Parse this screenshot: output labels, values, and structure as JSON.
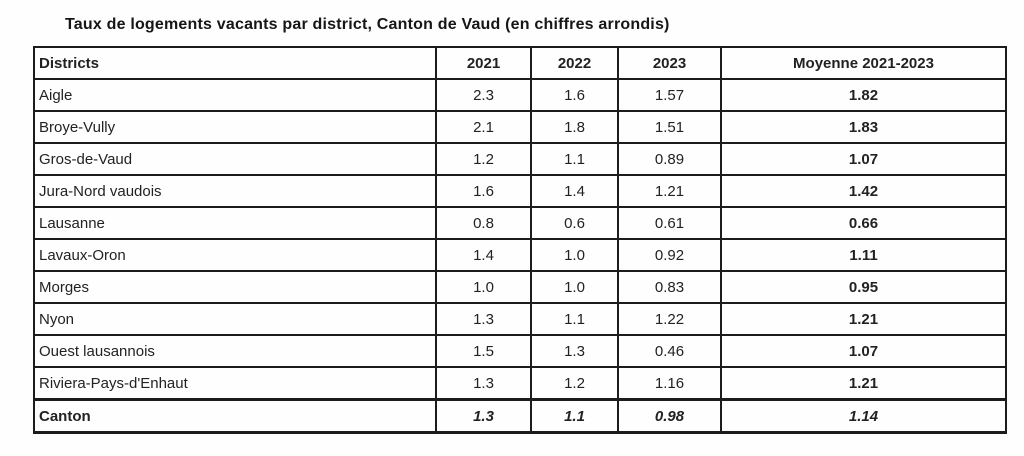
{
  "title": "Taux de logements vacants par district, Canton de Vaud (en chiffres arrondis)",
  "table": {
    "headers": {
      "district": "Districts",
      "y2021": "2021",
      "y2022": "2022",
      "y2023": "2023",
      "moyenne": "Moyenne 2021-2023"
    },
    "rows": [
      {
        "district": "Aigle",
        "v2021": "2.3",
        "v2022": "1.6",
        "v2023": "1.57",
        "moyenne": "1.82"
      },
      {
        "district": "Broye-Vully",
        "v2021": "2.1",
        "v2022": "1.8",
        "v2023": "1.51",
        "moyenne": "1.83"
      },
      {
        "district": "Gros-de-Vaud",
        "v2021": "1.2",
        "v2022": "1.1",
        "v2023": "0.89",
        "moyenne": "1.07"
      },
      {
        "district": "Jura-Nord vaudois",
        "v2021": "1.6",
        "v2022": "1.4",
        "v2023": "1.21",
        "moyenne": "1.42"
      },
      {
        "district": "Lausanne",
        "v2021": "0.8",
        "v2022": "0.6",
        "v2023": "0.61",
        "moyenne": "0.66"
      },
      {
        "district": "Lavaux-Oron",
        "v2021": "1.4",
        "v2022": "1.0",
        "v2023": "0.92",
        "moyenne": "1.11"
      },
      {
        "district": "Morges",
        "v2021": "1.0",
        "v2022": "1.0",
        "v2023": "0.83",
        "moyenne": "0.95"
      },
      {
        "district": "Nyon",
        "v2021": "1.3",
        "v2022": "1.1",
        "v2023": "1.22",
        "moyenne": "1.21"
      },
      {
        "district": "Ouest lausannois",
        "v2021": "1.5",
        "v2022": "1.3",
        "v2023": "0.46",
        "moyenne": "1.07"
      },
      {
        "district": "Riviera-Pays-d'Enhaut",
        "v2021": "1.3",
        "v2022": "1.2",
        "v2023": "1.16",
        "moyenne": "1.21"
      }
    ],
    "footer": {
      "district": "Canton",
      "v2021": "1.3",
      "v2022": "1.1",
      "v2023": "0.98",
      "moyenne": "1.14"
    }
  },
  "chart_data": {
    "type": "table",
    "title": "Taux de logements vacants par district, Canton de Vaud (en chiffres arrondis)",
    "columns": [
      "Districts",
      "2021",
      "2022",
      "2023",
      "Moyenne 2021-2023"
    ],
    "rows": [
      [
        "Aigle",
        2.3,
        1.6,
        1.57,
        1.82
      ],
      [
        "Broye-Vully",
        2.1,
        1.8,
        1.51,
        1.83
      ],
      [
        "Gros-de-Vaud",
        1.2,
        1.1,
        0.89,
        1.07
      ],
      [
        "Jura-Nord vaudois",
        1.6,
        1.4,
        1.21,
        1.42
      ],
      [
        "Lausanne",
        0.8,
        0.6,
        0.61,
        0.66
      ],
      [
        "Lavaux-Oron",
        1.4,
        1.0,
        0.92,
        1.11
      ],
      [
        "Morges",
        1.0,
        1.0,
        0.83,
        0.95
      ],
      [
        "Nyon",
        1.3,
        1.1,
        1.22,
        1.21
      ],
      [
        "Ouest lausannois",
        1.5,
        1.3,
        0.46,
        1.07
      ],
      [
        "Riviera-Pays-d'Enhaut",
        1.3,
        1.2,
        1.16,
        1.21
      ],
      [
        "Canton",
        1.3,
        1.1,
        0.98,
        1.14
      ]
    ]
  }
}
